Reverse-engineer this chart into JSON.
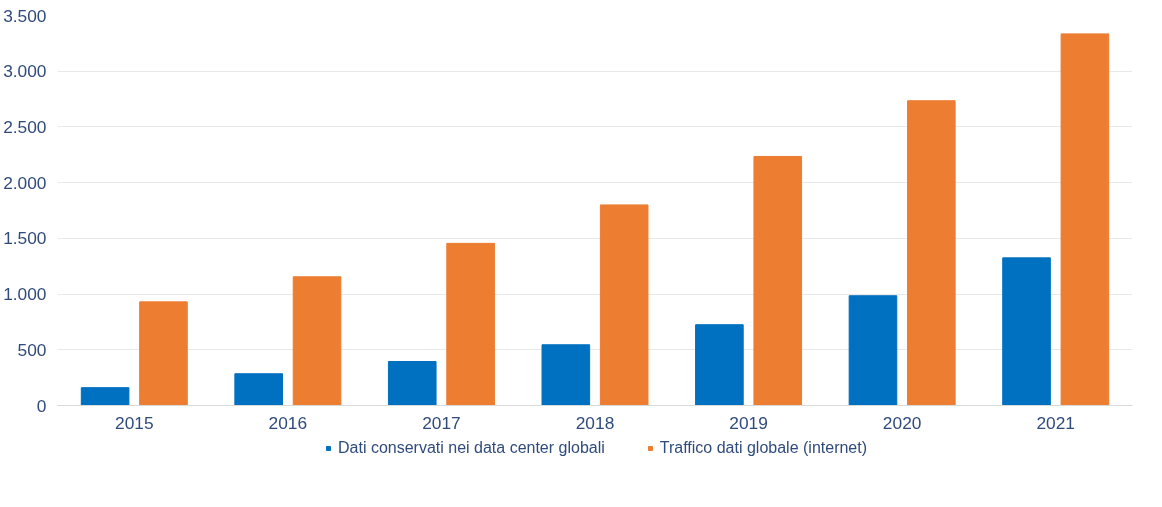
{
  "chart_data": {
    "type": "bar",
    "categories": [
      "2015",
      "2016",
      "2017",
      "2018",
      "2019",
      "2020",
      "2021"
    ],
    "series": [
      {
        "name": "Dati conservati nei data center globali",
        "color": "#0070c0",
        "values": [
          160,
          285,
          395,
          545,
          725,
          985,
          1325
        ]
      },
      {
        "name": "Traffico dati globale (internet)",
        "color": "#ed7d31",
        "values": [
          930,
          1155,
          1455,
          1800,
          2235,
          2735,
          3335
        ]
      }
    ],
    "ylim": [
      0,
      3500
    ],
    "yticks": [
      {
        "value": 0,
        "label": "0"
      },
      {
        "value": 500,
        "label": "500"
      },
      {
        "value": 1000,
        "label": "1.000"
      },
      {
        "value": 1500,
        "label": "1.500"
      },
      {
        "value": 2000,
        "label": "2.000"
      },
      {
        "value": 2500,
        "label": "2.500"
      },
      {
        "value": 3000,
        "label": "3.000"
      },
      {
        "value": 3500,
        "label": "3.500"
      }
    ],
    "grid": "y",
    "legend": "bottom"
  }
}
